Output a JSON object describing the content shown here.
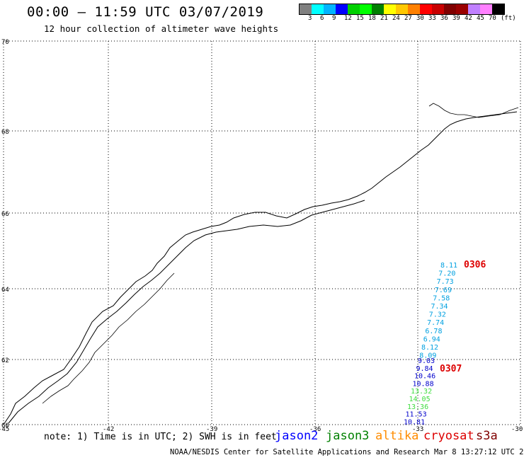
{
  "header": {
    "title": "00:00 – 11:59 UTC 03/07/2019",
    "subtitle": "12 hour collection of altimeter wave heights"
  },
  "colorbar": {
    "colors": [
      "#808080",
      "#00ffff",
      "#00b4ff",
      "#0000ff",
      "#00d000",
      "#00ff00",
      "#008000",
      "#ffff00",
      "#ffc800",
      "#ff8000",
      "#ff0000",
      "#c80000",
      "#800000",
      "#9a0000",
      "#c080ff",
      "#ff80ff",
      "#000000"
    ],
    "labels": [
      "3",
      "6",
      "9",
      "12",
      "15",
      "18",
      "21",
      "24",
      "27",
      "30",
      "33",
      "36",
      "39",
      "42",
      "45",
      "70",
      "(ft)"
    ]
  },
  "map": {
    "lat_labels": [
      "70",
      "68",
      "66",
      "64",
      "62",
      "60"
    ],
    "lon_labels": [
      "-45",
      "-42",
      "-39",
      "-36",
      "-33",
      "-30"
    ],
    "track_north": {
      "pass_label": "0306",
      "values": [
        "8.11",
        "7.20",
        "7.73",
        "7.69",
        "7.58",
        "7.34",
        "7.32",
        "7.74",
        "6.78",
        "6.94",
        "8.12",
        "8.09"
      ],
      "colors": [
        "#00a0e0",
        "#00a0e0",
        "#00a0e0",
        "#00a0e0",
        "#00a0e0",
        "#00a0e0",
        "#00a0e0",
        "#00a0e0",
        "#00a0e0",
        "#00a0e0",
        "#00a0e0",
        "#00a0e0"
      ]
    },
    "track_south": {
      "pass_label": "0307",
      "values": [
        "9.03",
        "9.84",
        "10.46",
        "10.88",
        "13.32",
        "14.05",
        "13.36",
        "11.53",
        "10.81"
      ],
      "colors": [
        "#0000cc",
        "#0000cc",
        "#0000cc",
        "#0000cc",
        "#40dd40",
        "#40dd40",
        "#40dd40",
        "#0000cc",
        "#0000cc"
      ]
    }
  },
  "footer": {
    "note": "note: 1) Time is in UTC; 2) SWH is in feet",
    "satellites": [
      {
        "name": "jason2",
        "color": "#0000ff"
      },
      {
        "name": "jason3",
        "color": "#008000"
      },
      {
        "name": "altika",
        "color": "#ff8c00"
      },
      {
        "name": "cryosat",
        "color": "#dd0000"
      },
      {
        "name": "s3a",
        "color": "#800000"
      }
    ],
    "credit": "NOAA/NESDIS Center for Satellite Applications and Research   Mar  8 13:27:12 UTC 2019"
  }
}
